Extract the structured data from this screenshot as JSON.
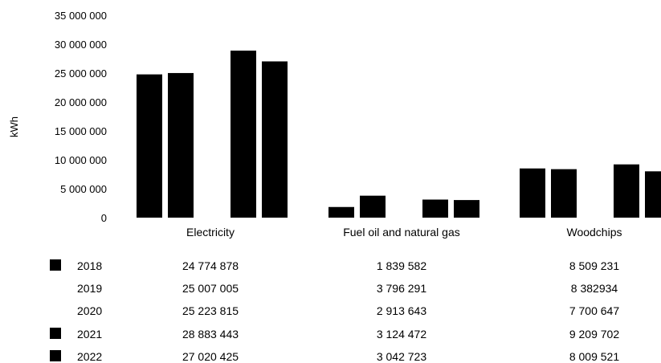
{
  "chart_data": {
    "type": "bar",
    "ylabel": "kWh",
    "ylim": [
      0,
      35000000
    ],
    "yticks": [
      0,
      5000000,
      10000000,
      15000000,
      20000000,
      25000000,
      30000000,
      35000000
    ],
    "ytick_labels": [
      "0",
      "5 000 000",
      "10 000 000",
      "15 000 000",
      "20 000 000",
      "25 000 000",
      "30 000 000",
      "35 000 000"
    ],
    "categories": [
      "Electricity",
      "Fuel oil and natural gas",
      "Woodchips"
    ],
    "series": [
      {
        "name": "2018",
        "values": [
          24774878,
          1839582,
          8509231
        ],
        "labels": [
          "24 774 878",
          "1 839 582",
          "8 509 231"
        ],
        "color": "#000000"
      },
      {
        "name": "2019",
        "values": [
          25007005,
          3796291,
          8382934
        ],
        "labels": [
          "25 007 005",
          "3 796 291",
          "8 382934"
        ],
        "color": "#000000"
      },
      {
        "name": "2020",
        "values": [
          25223815,
          2913643,
          7700647
        ],
        "labels": [
          "25 223 815",
          "2 913 643",
          "7 700 647"
        ],
        "color": "#000000"
      },
      {
        "name": "2021",
        "values": [
          28883443,
          3124472,
          9209702
        ],
        "labels": [
          "28 883 443",
          "3 124 472",
          "9 209 702"
        ],
        "color": "#000000"
      },
      {
        "name": "2022",
        "values": [
          27020425,
          3042723,
          8009521
        ],
        "labels": [
          "27 020 425",
          "3 042 723",
          "8 009 521"
        ],
        "color": "#000000"
      }
    ],
    "visible_bars": [
      [
        true,
        true,
        false,
        true,
        true
      ],
      [
        true,
        true,
        false,
        true,
        true
      ],
      [
        true,
        true,
        false,
        true,
        true
      ]
    ],
    "legend_key_visible": [
      true,
      false,
      false,
      true,
      true
    ],
    "grid": false,
    "legend": "data-table"
  }
}
